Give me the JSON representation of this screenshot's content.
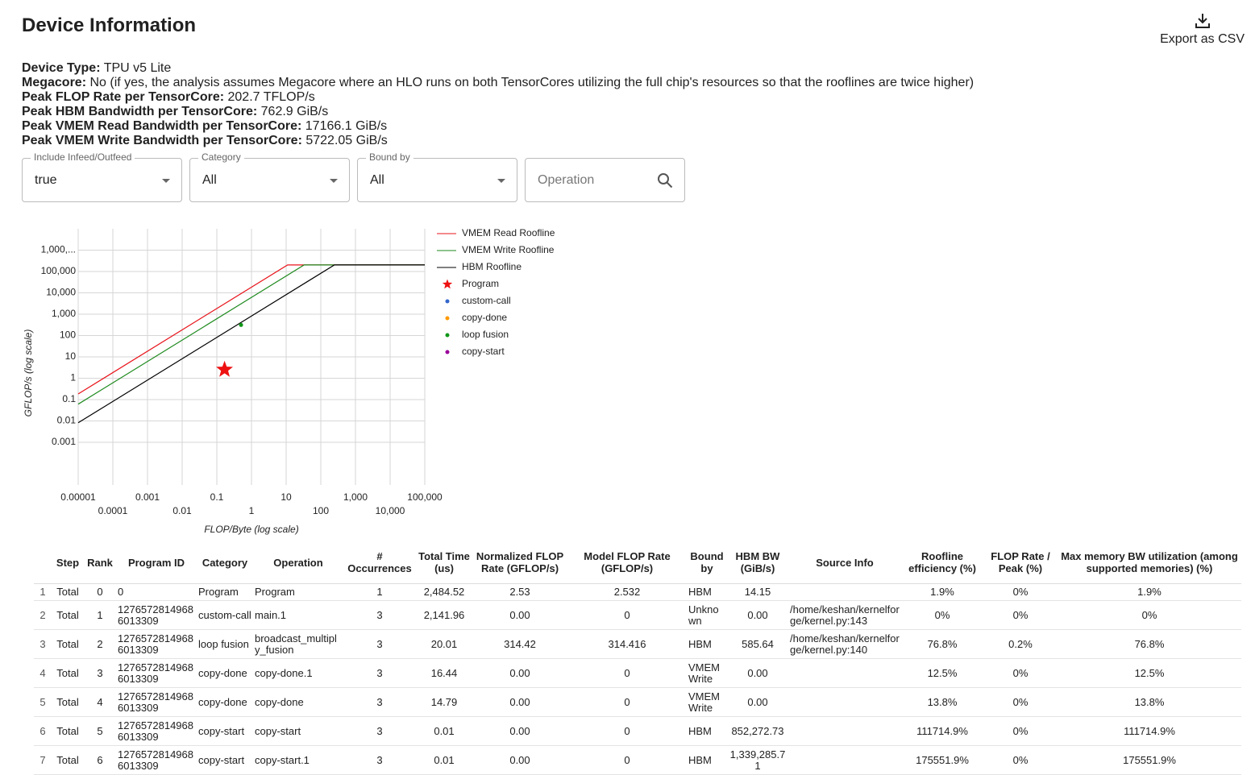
{
  "header": {
    "title": "Device Information",
    "export": "Export as CSV"
  },
  "device_info": [
    {
      "label": "Device Type:",
      "value": "TPU v5 Lite"
    },
    {
      "label": "Megacore:",
      "value": "No (if yes, the analysis assumes Megacore where an HLO runs on both TensorCores utilizing the full chip's resources so that the rooflines are twice higher)"
    },
    {
      "label": "Peak FLOP Rate per TensorCore:",
      "value": "202.7 TFLOP/s"
    },
    {
      "label": "Peak HBM Bandwidth per TensorCore:",
      "value": "762.9 GiB/s"
    },
    {
      "label": "Peak VMEM Read Bandwidth per TensorCore:",
      "value": "17166.1 GiB/s"
    },
    {
      "label": "Peak VMEM Write Bandwidth per TensorCore:",
      "value": "5722.05 GiB/s"
    }
  ],
  "filters": [
    {
      "label": "Include Infeed/Outfeed",
      "value": "true"
    },
    {
      "label": "Category",
      "value": "All"
    },
    {
      "label": "Bound by",
      "value": "All"
    }
  ],
  "search": {
    "placeholder": "Operation"
  },
  "chart_data": {
    "type": "roofline",
    "xlabel": "FLOP/Byte (log scale)",
    "ylabel": "GFLOP/s (log scale)",
    "xscale": "log",
    "yscale": "log",
    "grid": true,
    "xlim": [
      1e-05,
      100000
    ],
    "ylim": [
      1e-05,
      10000000
    ],
    "xticks": [
      1e-05,
      0.0001,
      0.001,
      0.01,
      0.1,
      1,
      10,
      100,
      {
        "value": 1000,
        "label": "1,000"
      },
      {
        "value": 10000,
        "label": "10,000"
      },
      {
        "value": 100000,
        "label": "100,000"
      }
    ],
    "yticks": [
      0.001,
      0.01,
      0.1,
      1,
      10,
      100,
      {
        "value": 1000,
        "label": "1,000"
      },
      {
        "value": 10000,
        "label": "10,000"
      },
      {
        "value": 100000,
        "label": "100,000"
      },
      {
        "value": 1000000,
        "label": "1,000,..."
      }
    ],
    "series": [
      {
        "name": "VMEM Read Roofline",
        "color": "#e8141b",
        "marker": "line",
        "x": [
          1e-05,
          11,
          100000
        ],
        "values": [
          0.184,
          202700,
          202700
        ]
      },
      {
        "name": "VMEM Write Roofline",
        "color": "#1e8a1e",
        "marker": "line",
        "x": [
          1e-05,
          33,
          100000
        ],
        "values": [
          0.061,
          202700,
          202700
        ]
      },
      {
        "name": "HBM Roofline",
        "color": "#000000",
        "marker": "line",
        "x": [
          1e-05,
          247,
          100000
        ],
        "values": [
          0.0082,
          202700,
          202700
        ]
      },
      {
        "name": "Program",
        "color": "#ee1111",
        "marker": "star",
        "x": [
          0.167
        ],
        "values": [
          2.53
        ]
      },
      {
        "name": "custom-call",
        "color": "#3366cc",
        "marker": "dot"
      },
      {
        "name": "copy-done",
        "color": "#ff9900",
        "marker": "dot"
      },
      {
        "name": "loop fusion",
        "color": "#109618",
        "marker": "dot",
        "x": [
          0.5
        ],
        "values": [
          314.42
        ]
      },
      {
        "name": "copy-start",
        "color": "#990099",
        "marker": "dot"
      }
    ]
  },
  "table": {
    "columns": [
      "Step",
      "Rank",
      "Program ID",
      "Category",
      "Operation",
      "# Occurrences",
      "Total Time (us)",
      "Normalized FLOP Rate (GFLOP/s)",
      "Model FLOP Rate (GFLOP/s)",
      "Bound by",
      "HBM BW (GiB/s)",
      "Source Info",
      "Roofline efficiency (%)",
      "FLOP Rate / Peak (%)",
      "Max memory BW utilization (among supported memories) (%)"
    ],
    "rows": [
      {
        "index": 1,
        "cells": [
          "Total",
          "0",
          "0",
          "Program",
          "Program",
          "1",
          "2,484.52",
          "2.53",
          "2.532",
          "HBM",
          "14.15",
          "",
          "1.9%",
          "0%",
          "1.9%"
        ]
      },
      {
        "index": 2,
        "cells": [
          "Total",
          "1",
          "12765728149686013309",
          "custom-call",
          "main.1",
          "3",
          "2,141.96",
          "0.00",
          "0",
          "Unknown",
          "0.00",
          "/home/keshan/kernelforge/kernel.py:143",
          "0%",
          "0%",
          "0%"
        ]
      },
      {
        "index": 3,
        "cells": [
          "Total",
          "2",
          "12765728149686013309",
          "loop fusion",
          "broadcast_multiply_fusion",
          "3",
          "20.01",
          "314.42",
          "314.416",
          "HBM",
          "585.64",
          "/home/keshan/kernelforge/kernel.py:140",
          "76.8%",
          "0.2%",
          "76.8%"
        ]
      },
      {
        "index": 4,
        "cells": [
          "Total",
          "3",
          "12765728149686013309",
          "copy-done",
          "copy-done.1",
          "3",
          "16.44",
          "0.00",
          "0",
          "VMEM Write",
          "0.00",
          "",
          "12.5%",
          "0%",
          "12.5%"
        ]
      },
      {
        "index": 5,
        "cells": [
          "Total",
          "4",
          "12765728149686013309",
          "copy-done",
          "copy-done",
          "3",
          "14.79",
          "0.00",
          "0",
          "VMEM Write",
          "0.00",
          "",
          "13.8%",
          "0%",
          "13.8%"
        ]
      },
      {
        "index": 6,
        "cells": [
          "Total",
          "5",
          "12765728149686013309",
          "copy-start",
          "copy-start",
          "3",
          "0.01",
          "0.00",
          "0",
          "HBM",
          "852,272.73",
          "",
          "111714.9%",
          "0%",
          "111714.9%"
        ]
      },
      {
        "index": 7,
        "cells": [
          "Total",
          "6",
          "12765728149686013309",
          "copy-start",
          "copy-start.1",
          "3",
          "0.01",
          "0.00",
          "0",
          "HBM",
          "1,339,285.71",
          "",
          "175551.9%",
          "0%",
          "175551.9%"
        ]
      }
    ]
  }
}
